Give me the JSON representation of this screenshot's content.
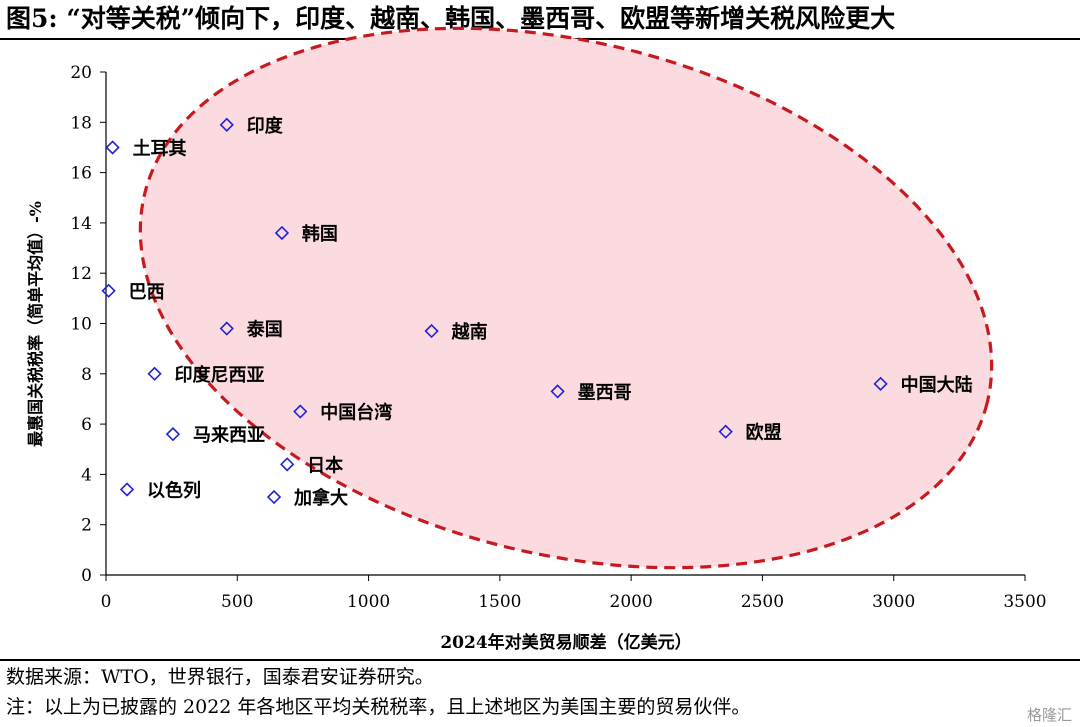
{
  "figure": {
    "title": "图5:  “对等关税”倾向下，印度、越南、韩国、墨西哥、欧盟等新增关税风险更大",
    "source_note": "数据来源：WTO，世界银行，国泰君安证券研究。",
    "footnote": "注：以上为已披露的 2022 年各地区平均关税税率，且上述地区为美国主要的贸易伙伴。",
    "watermark": "格隆汇"
  },
  "chart_data": {
    "type": "scatter",
    "xlabel": "2024年对美贸易顺差（亿美元）",
    "ylabel": "最惠国关税税率（简单平均值）-%",
    "xlim": [
      0,
      3500
    ],
    "ylim": [
      0,
      20
    ],
    "xticks": [
      0,
      500,
      1000,
      1500,
      2000,
      2500,
      3000,
      3500
    ],
    "yticks": [
      0,
      2,
      4,
      6,
      8,
      10,
      12,
      14,
      16,
      18,
      20
    ],
    "grid": false,
    "marker": "diamond-open",
    "marker_color": "#1f22d8",
    "highlight_color": "#c8191f",
    "highlight_fill": "#fbdbdf",
    "points": [
      {
        "label": "印度",
        "x": 460,
        "y": 17.9
      },
      {
        "label": "土耳其",
        "x": 25,
        "y": 17.0
      },
      {
        "label": "韩国",
        "x": 670,
        "y": 13.6
      },
      {
        "label": "巴西",
        "x": 10,
        "y": 11.3
      },
      {
        "label": "泰国",
        "x": 460,
        "y": 9.8
      },
      {
        "label": "越南",
        "x": 1240,
        "y": 9.7
      },
      {
        "label": "印度尼西亚",
        "x": 185,
        "y": 8.0
      },
      {
        "label": "墨西哥",
        "x": 1720,
        "y": 7.3
      },
      {
        "label": "中国大陆",
        "x": 2950,
        "y": 7.6
      },
      {
        "label": "中国台湾",
        "x": 740,
        "y": 6.5
      },
      {
        "label": "欧盟",
        "x": 2360,
        "y": 5.7
      },
      {
        "label": "马来西亚",
        "x": 255,
        "y": 5.6
      },
      {
        "label": "日本",
        "x": 690,
        "y": 4.4
      },
      {
        "label": "以色列",
        "x": 80,
        "y": 3.4
      },
      {
        "label": "加拿大",
        "x": 640,
        "y": 3.1
      }
    ]
  }
}
